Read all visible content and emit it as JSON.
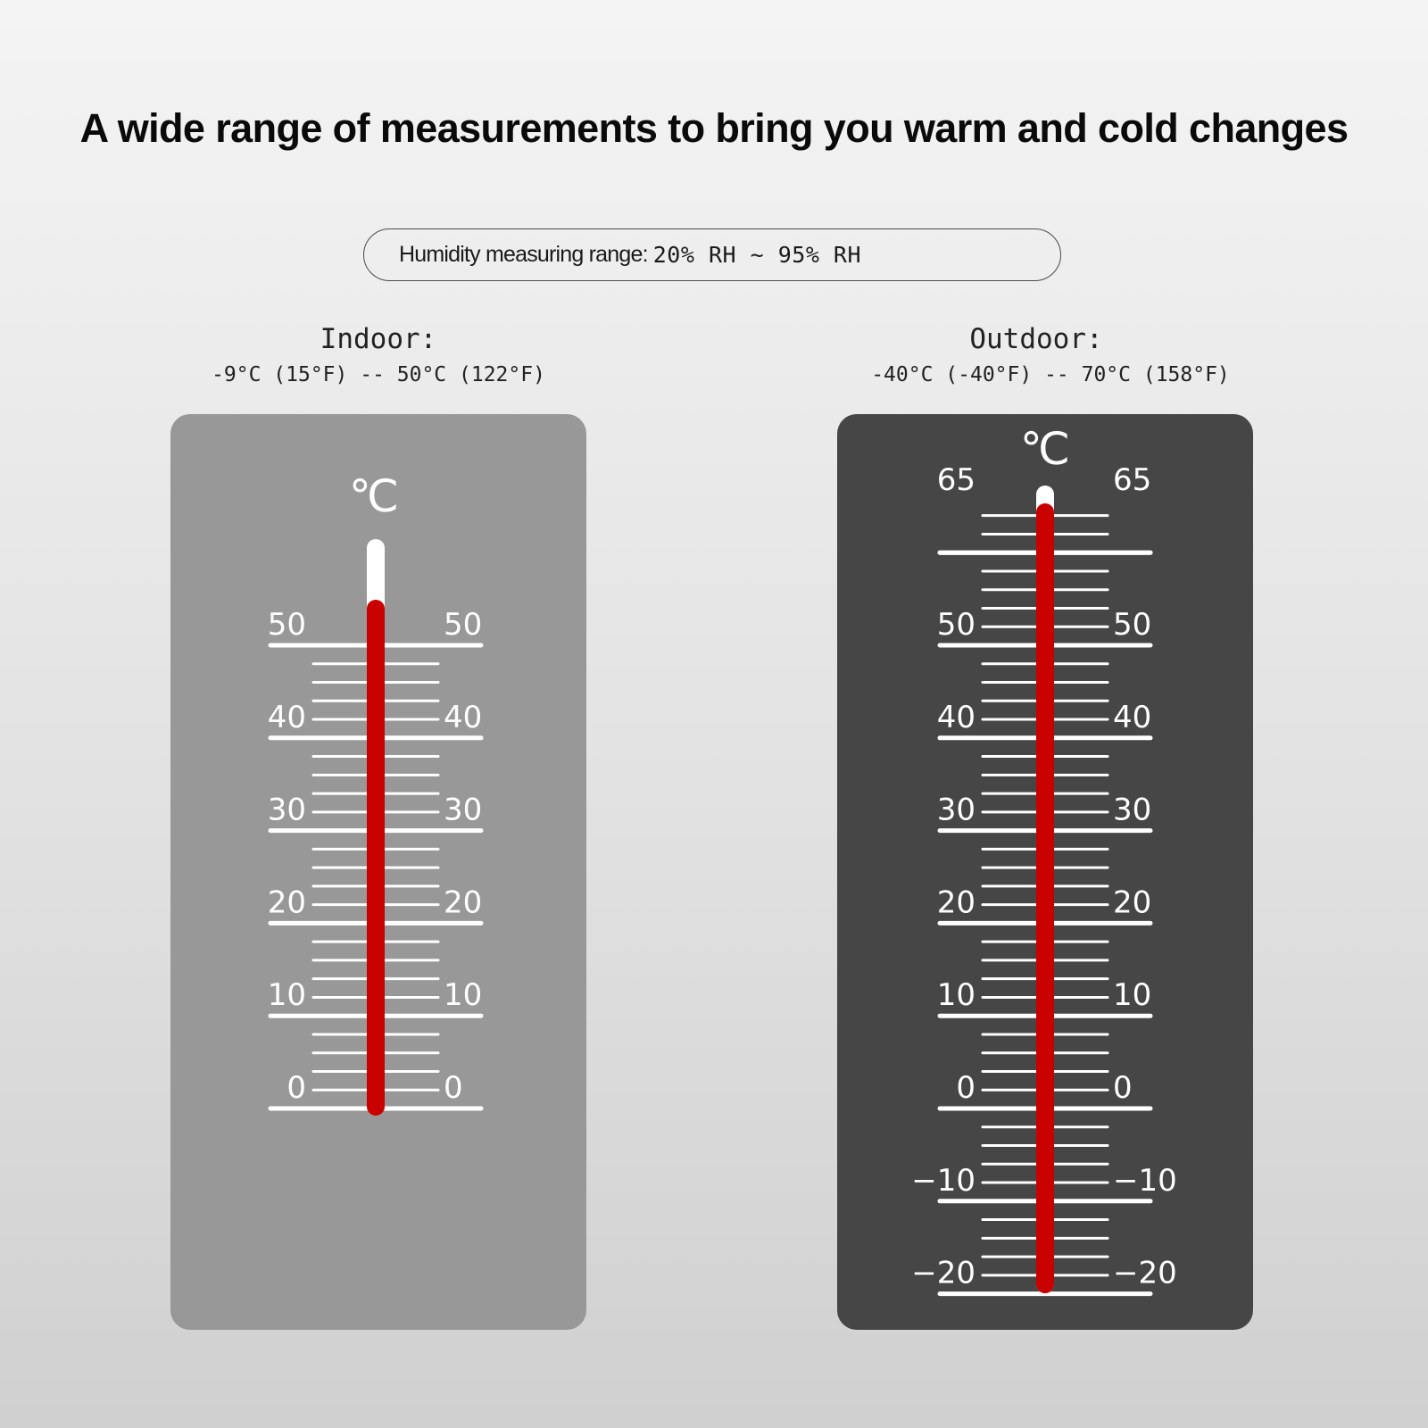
{
  "headline": "A wide range of measurements to bring you warm and cold changes",
  "humidity": {
    "label": "Humidity measuring range:",
    "value": "20% RH ~ 95% RH"
  },
  "indoor": {
    "title": "Indoor:",
    "range": "-9°C (15°F) -- 50°C (122°F)",
    "unit": "℃",
    "scale_min": 0,
    "scale_max": 50,
    "labels": [
      "50",
      "40",
      "30",
      "20",
      "10",
      "0"
    ]
  },
  "outdoor": {
    "title": "Outdoor:",
    "range": "-40°C (-40°F) -- 70°C (158°F)",
    "unit": "℃",
    "scale_min": -20,
    "scale_max": 65,
    "labels": [
      "65",
      "50",
      "40",
      "30",
      "20",
      "10",
      "0",
      "−10",
      "−20"
    ]
  },
  "colors": {
    "mercury": "#c80000",
    "tick": "#ffffff",
    "indoor_panel": "#989898",
    "outdoor_panel": "#464646"
  }
}
